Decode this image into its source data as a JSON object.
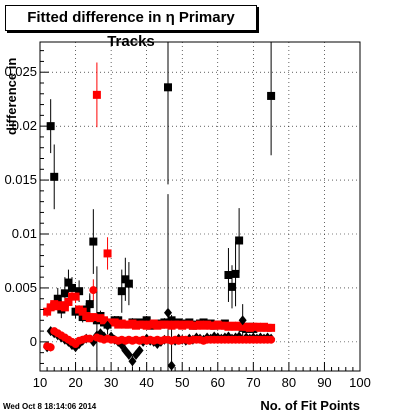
{
  "chart_data": {
    "type": "scatter",
    "title": "Fitted difference in  η Primary Tracks",
    "xlabel": "No. of Fit Points",
    "ylabel": "difference in",
    "xlim": [
      10,
      100
    ],
    "ylim": [
      -0.0027,
      0.0278
    ],
    "x_ticks": [
      "10",
      "20",
      "30",
      "40",
      "50",
      "60",
      "70",
      "80",
      "90",
      "100"
    ],
    "x_tick_values": [
      10,
      20,
      30,
      40,
      50,
      60,
      70,
      80,
      90,
      100
    ],
    "y_ticks": [
      "0",
      "0.005",
      "0.01",
      "0.015",
      "0.02",
      "0.025"
    ],
    "y_tick_values": [
      0,
      0.005,
      0.01,
      0.015,
      0.02,
      0.025
    ],
    "grid": true,
    "series": [
      {
        "color": "#000000",
        "marker": "square",
        "x": [
          13,
          14,
          15,
          16,
          17,
          18,
          19,
          20,
          21,
          22,
          23,
          24,
          25,
          26,
          27,
          28,
          29,
          30,
          31,
          32,
          33,
          34,
          35,
          36,
          37,
          38,
          39,
          40,
          41,
          42,
          43,
          44,
          45,
          46,
          47,
          48,
          49,
          50,
          51,
          52,
          53,
          54,
          55,
          56,
          57,
          58,
          59,
          60,
          61,
          62,
          63,
          64,
          65,
          66,
          67,
          68,
          69,
          70,
          75
        ],
        "y": [
          0.02,
          0.0153,
          0.004,
          0.003,
          0.0045,
          0.0055,
          0.005,
          0.0028,
          0.0047,
          0.0023,
          0.003,
          0.0035,
          0.0093,
          0.002,
          0.0024,
          0.0018,
          0.0016,
          0.0018,
          0.002,
          0.002,
          0.0047,
          0.0058,
          0.0054,
          0.0018,
          0.0017,
          0.0018,
          0.0016,
          0.002,
          0.0015,
          0.0017,
          0.0017,
          0.0016,
          0.0018,
          0.0236,
          0.002,
          0.0017,
          0.0018,
          0.0016,
          0.0017,
          0.0018,
          0.0015,
          0.0016,
          0.0017,
          0.0018,
          0.0016,
          0.0017,
          0.0015,
          0.0016,
          0.0016,
          0.0017,
          0.0062,
          0.0051,
          0.0063,
          0.0094,
          0.0013,
          0.0012,
          0.0014,
          0.0012,
          0.0228
        ],
        "err": [
          0.0025,
          0.003,
          0.001,
          0.0008,
          0.0015,
          0.0012,
          0.001,
          0.0006,
          0.001,
          0.0005,
          0.0006,
          0.0008,
          0.003,
          0.005,
          0.0005,
          0.0004,
          0.0003,
          0.0004,
          0.0004,
          0.0004,
          0.002,
          0.002,
          0.002,
          0.0004,
          0.0003,
          0.0003,
          0.0003,
          0.0004,
          0.0003,
          0.0003,
          0.0003,
          0.0003,
          0.0004,
          0.009,
          0.0005,
          0.0003,
          0.0003,
          0.0003,
          0.0003,
          0.0003,
          0.0003,
          0.0003,
          0.0003,
          0.0003,
          0.0003,
          0.0003,
          0.0003,
          0.0003,
          0.0003,
          0.0003,
          0.0025,
          0.002,
          0.003,
          0.003,
          0.0003,
          0.0003,
          0.0003,
          0.0003,
          0.0055
        ]
      },
      {
        "color": "#ff0000",
        "marker": "square",
        "x": [
          12,
          13,
          14,
          15,
          16,
          17,
          18,
          19,
          20,
          21,
          22,
          23,
          24,
          25,
          26,
          27,
          28,
          29,
          30,
          31,
          32,
          33,
          34,
          35,
          36,
          37,
          38,
          39,
          40,
          41,
          42,
          43,
          44,
          45,
          46,
          47,
          48,
          49,
          50,
          51,
          52,
          53,
          54,
          55,
          56,
          57,
          58,
          59,
          60,
          61,
          62,
          63,
          64,
          65,
          66,
          67,
          68,
          69,
          70,
          71,
          72,
          73,
          74,
          75
        ],
        "y": [
          0.0028,
          0.0032,
          0.0035,
          0.0033,
          0.0034,
          0.0032,
          0.0037,
          0.0042,
          0.0042,
          0.003,
          0.0028,
          0.0024,
          0.0022,
          0.0023,
          0.0229,
          0.0022,
          0.002,
          0.0082,
          0.0018,
          0.0018,
          0.0016,
          0.0017,
          0.0016,
          0.0016,
          0.0017,
          0.0015,
          0.0016,
          0.0016,
          0.0015,
          0.0016,
          0.0017,
          0.0015,
          0.0016,
          0.0016,
          0.0016,
          0.0015,
          0.0016,
          0.0016,
          0.0015,
          0.0016,
          0.0016,
          0.0015,
          0.0015,
          0.0016,
          0.0015,
          0.0016,
          0.0015,
          0.0015,
          0.0016,
          0.0015,
          0.0015,
          0.0014,
          0.0015,
          0.0014,
          0.0015,
          0.0014,
          0.0014,
          0.0013,
          0.0014,
          0.0014,
          0.0013,
          0.0014,
          0.0013,
          0.0013
        ],
        "err": [
          0.0005,
          0.0005,
          0.0004,
          0.0004,
          0.0004,
          0.0004,
          0.0005,
          0.0006,
          0.0006,
          0.0004,
          0.0004,
          0.0003,
          0.0003,
          0.0003,
          0.003,
          0.0003,
          0.0003,
          0.0015,
          0.0002,
          0.0002,
          0.0002,
          0.0002,
          0.0002,
          0.0002,
          0.0002,
          0.0002,
          0.0002,
          0.0002,
          0.0002,
          0.0002,
          0.0002,
          0.0002,
          0.0002,
          0.0002,
          0.0002,
          0.0002,
          0.0002,
          0.0002,
          0.0002,
          0.0002,
          0.0002,
          0.0002,
          0.0002,
          0.0002,
          0.0002,
          0.0002,
          0.0002,
          0.0002,
          0.0002,
          0.0002,
          0.0002,
          0.0002,
          0.0002,
          0.0002,
          0.0002,
          0.0002,
          0.0002,
          0.0002,
          0.0002,
          0.0002,
          0.0002,
          0.0002,
          0.0002,
          0.0002
        ]
      },
      {
        "color": "#000000",
        "marker": "diamond",
        "x": [
          12,
          13,
          14,
          15,
          16,
          17,
          18,
          19,
          20,
          21,
          22,
          23,
          24,
          25,
          26,
          27,
          28,
          29,
          30,
          31,
          32,
          33,
          34,
          35,
          36,
          37,
          38,
          39,
          40,
          41,
          42,
          43,
          44,
          45,
          46,
          47,
          48,
          49,
          50,
          51,
          52,
          53,
          54,
          55,
          56,
          57,
          58,
          59,
          60,
          61,
          62,
          63,
          64,
          65,
          66,
          67,
          68,
          69,
          70,
          71,
          72,
          73,
          74,
          75
        ],
        "y": [
          -0.0005,
          0.001,
          0.0008,
          0.0006,
          0.0004,
          0.0002,
          0.0,
          -0.0003,
          -0.0005,
          -0.0002,
          0.0001,
          0.0003,
          0.0035,
          0.0,
          0.0006,
          0.0008,
          0.0005,
          0.0015,
          0.0005,
          0.0002,
          0.0,
          -0.0003,
          -0.0008,
          -0.0012,
          -0.0018,
          -0.0012,
          -0.0008,
          0.0,
          0.0003,
          0.0001,
          0.0,
          -0.0002,
          0.0,
          0.0002,
          0.0027,
          -0.0022,
          0.0001,
          0.0003,
          0.0002,
          0.0001,
          0.0003,
          0.0002,
          0.0004,
          0.0003,
          0.0002,
          0.0004,
          0.0003,
          0.0005,
          0.0004,
          0.0003,
          0.0004,
          0.0005,
          0.0003,
          0.0004,
          0.0005,
          0.002,
          0.0004,
          0.0003,
          0.0004,
          0.0003,
          0.0004,
          0.0003,
          0.0004,
          0.0003
        ],
        "err": [
          0.0004,
          0.0004,
          0.0003,
          0.0003,
          0.0003,
          0.0003,
          0.0003,
          0.0003,
          0.0003,
          0.0003,
          0.0003,
          0.0003,
          0.001,
          0.0003,
          0.0003,
          0.0003,
          0.0003,
          0.0008,
          0.0002,
          0.0002,
          0.0002,
          0.0002,
          0.0003,
          0.0004,
          0.0005,
          0.0004,
          0.0003,
          0.0002,
          0.0002,
          0.0002,
          0.0002,
          0.0002,
          0.0002,
          0.0002,
          0.011,
          0.004,
          0.0002,
          0.0002,
          0.0002,
          0.0002,
          0.0002,
          0.0002,
          0.0002,
          0.0002,
          0.0002,
          0.0002,
          0.0002,
          0.0002,
          0.0002,
          0.0002,
          0.0002,
          0.0002,
          0.0002,
          0.0002,
          0.0002,
          0.0015,
          0.0002,
          0.0002,
          0.0002,
          0.0002,
          0.0002,
          0.0002,
          0.0002,
          0.0002
        ]
      },
      {
        "color": "#ff0000",
        "marker": "circle",
        "x": [
          12,
          13,
          14,
          15,
          16,
          17,
          18,
          19,
          20,
          21,
          22,
          23,
          24,
          25,
          26,
          27,
          28,
          29,
          30,
          31,
          32,
          33,
          34,
          35,
          36,
          37,
          38,
          39,
          40,
          41,
          42,
          43,
          44,
          45,
          46,
          47,
          48,
          49,
          50,
          51,
          52,
          53,
          54,
          55,
          56,
          57,
          58,
          59,
          60,
          61,
          62,
          63,
          64,
          65,
          66,
          67,
          68,
          69,
          70,
          71,
          72,
          73,
          74,
          75
        ],
        "y": [
          -0.0004,
          -0.0005,
          0.001,
          0.0008,
          0.0006,
          0.0004,
          0.0002,
          0.0,
          -0.0002,
          0.0001,
          0.0002,
          0.0003,
          0.0003,
          0.0048,
          0.0004,
          0.0003,
          0.0002,
          0.0003,
          0.0002,
          0.0002,
          0.0001,
          0.0002,
          0.0001,
          0.0002,
          0.0001,
          0.0002,
          0.0001,
          0.0002,
          0.0001,
          0.0002,
          0.0001,
          0.0002,
          0.0001,
          0.0002,
          0.0002,
          0.0001,
          0.0002,
          0.0001,
          0.0002,
          0.0002,
          0.0001,
          0.0002,
          0.0002,
          0.0002,
          0.0001,
          0.0002,
          0.0002,
          0.0002,
          0.0002,
          0.0002,
          0.0002,
          0.0002,
          0.0002,
          0.0002,
          0.0002,
          0.0002,
          0.0002,
          0.0002,
          0.0002,
          0.0002,
          0.0002,
          0.0002,
          0.0002,
          0.0002
        ],
        "err": [
          0.0004,
          0.0004,
          0.0003,
          0.0003,
          0.0003,
          0.0003,
          0.0003,
          0.0003,
          0.0003,
          0.0002,
          0.0002,
          0.0002,
          0.0002,
          0.001,
          0.0002,
          0.0002,
          0.0002,
          0.0002,
          0.0002,
          0.0002,
          0.0002,
          0.0002,
          0.0002,
          0.0002,
          0.0002,
          0.0002,
          0.0002,
          0.0002,
          0.0002,
          0.0002,
          0.0002,
          0.0002,
          0.0002,
          0.0002,
          0.0002,
          0.0002,
          0.0002,
          0.0002,
          0.0002,
          0.0002,
          0.0002,
          0.0002,
          0.0002,
          0.0002,
          0.0002,
          0.0002,
          0.0002,
          0.0002,
          0.0002,
          0.0002,
          0.0002,
          0.0002,
          0.0002,
          0.0002,
          0.0002,
          0.0002,
          0.0002,
          0.0002,
          0.0002,
          0.0002,
          0.0002,
          0.0002,
          0.0002,
          0.0002
        ]
      }
    ]
  },
  "footer": {
    "datestamp": "Wed Oct  8 18:14:06 2014"
  }
}
